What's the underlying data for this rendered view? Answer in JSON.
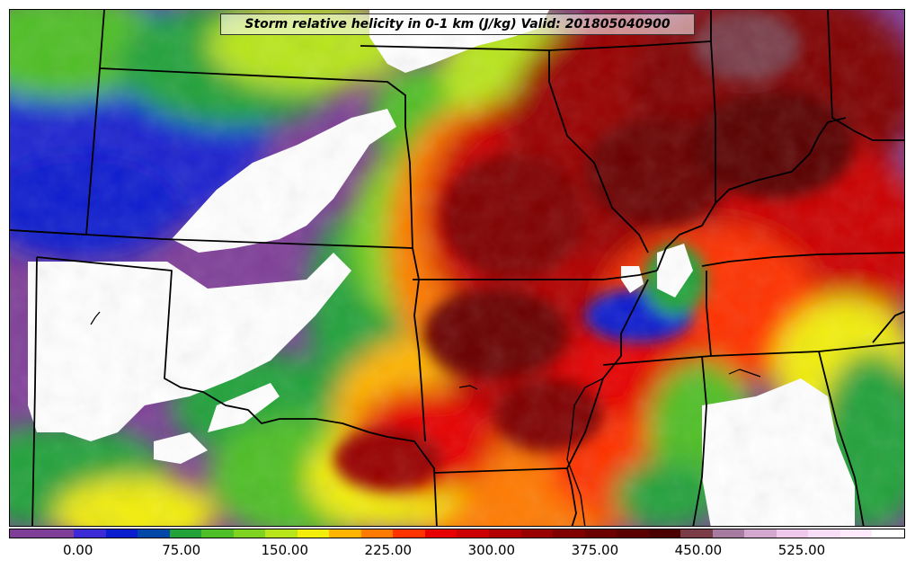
{
  "title": "Storm relative helicity in 0-1 km (J/kg) Valid: 201805040900",
  "colorbar": {
    "colors": [
      "#7f3f98",
      "#7f3f98",
      "#3c2ad6",
      "#0a1ecf",
      "#0047a8",
      "#23a23a",
      "#4fbf27",
      "#7ed321",
      "#b8e51a",
      "#f2ed0a",
      "#ffb400",
      "#ff7a00",
      "#ff3300",
      "#e60000",
      "#cc0000",
      "#b30000",
      "#990000",
      "#800000",
      "#6b0000",
      "#5a0000",
      "#4a0000",
      "#7a3d48",
      "#a77aa0",
      "#d4a7cf",
      "#f0c8ec",
      "#f8ddf6",
      "#fce9fa",
      "#ffffff"
    ],
    "ticks": [
      {
        "label": "0.00",
        "value": 0
      },
      {
        "label": "75.00",
        "value": 75
      },
      {
        "label": "150.00",
        "value": 150
      },
      {
        "label": "225.00",
        "value": 225
      },
      {
        "label": "300.00",
        "value": 300
      },
      {
        "label": "375.00",
        "value": 375
      },
      {
        "label": "450.00",
        "value": 450
      },
      {
        "label": "525.00",
        "value": 525
      }
    ],
    "min": -50,
    "max": 600
  }
}
